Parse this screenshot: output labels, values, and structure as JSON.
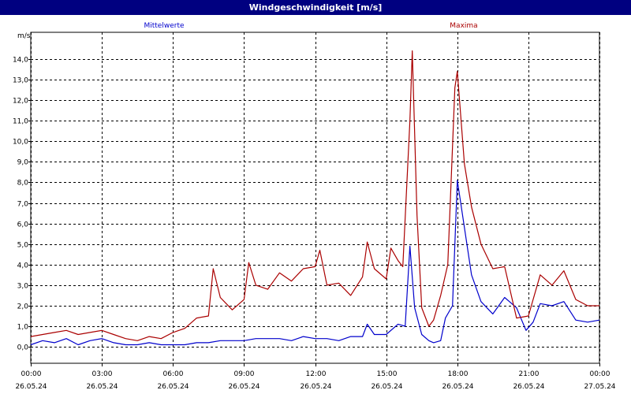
{
  "window": {
    "title": "Windgeschwindigkeit [m/s]"
  },
  "chart_data": {
    "type": "line",
    "title": "Windgeschwindigkeit [m/s]",
    "ylabel": "m/s",
    "ylim": [
      -0.8,
      15.3
    ],
    "yticks": [
      0,
      1,
      2,
      3,
      4,
      5,
      6,
      7,
      8,
      9,
      10,
      11,
      12,
      13,
      14
    ],
    "ytick_labels": [
      "0,0",
      "1,0",
      "2,0",
      "3,0",
      "4,0",
      "5,0",
      "6,0",
      "7,0",
      "8,0",
      "9,0",
      "10,0",
      "11,0",
      "12,0",
      "13,0",
      "14,0"
    ],
    "xlim": [
      0,
      24
    ],
    "xticks": [
      0,
      3,
      6,
      9,
      12,
      15,
      18,
      21,
      24
    ],
    "xtick_labels": [
      [
        "00:00",
        "26.05.24"
      ],
      [
        "03:00",
        "26.05.24"
      ],
      [
        "06:00",
        "26.05.24"
      ],
      [
        "09:00",
        "26.05.24"
      ],
      [
        "12:00",
        "26.05.24"
      ],
      [
        "15:00",
        "26.05.24"
      ],
      [
        "18:00",
        "26.05.24"
      ],
      [
        "21:00",
        "26.05.24"
      ],
      [
        "00:00",
        "27.05.24"
      ]
    ],
    "grid": true,
    "legend_position": "top",
    "series": [
      {
        "name": "Mittelwerte",
        "color": "#0000cc",
        "points": [
          [
            0,
            0.1
          ],
          [
            0.5,
            0.3
          ],
          [
            1,
            0.2
          ],
          [
            1.5,
            0.4
          ],
          [
            2,
            0.1
          ],
          [
            2.5,
            0.3
          ],
          [
            3,
            0.4
          ],
          [
            3.5,
            0.2
          ],
          [
            4,
            0.1
          ],
          [
            4.5,
            0.1
          ],
          [
            5,
            0.2
          ],
          [
            5.5,
            0.1
          ],
          [
            6,
            0.1
          ],
          [
            6.5,
            0.1
          ],
          [
            7,
            0.2
          ],
          [
            7.5,
            0.2
          ],
          [
            8,
            0.3
          ],
          [
            8.5,
            0.3
          ],
          [
            9,
            0.3
          ],
          [
            9.5,
            0.4
          ],
          [
            10,
            0.4
          ],
          [
            10.5,
            0.4
          ],
          [
            11,
            0.3
          ],
          [
            11.5,
            0.5
          ],
          [
            12,
            0.4
          ],
          [
            12.5,
            0.4
          ],
          [
            13,
            0.3
          ],
          [
            13.5,
            0.5
          ],
          [
            14,
            0.5
          ],
          [
            14.2,
            1.1
          ],
          [
            14.5,
            0.6
          ],
          [
            15,
            0.6
          ],
          [
            15.5,
            1.1
          ],
          [
            15.8,
            1.0
          ],
          [
            16,
            4.9
          ],
          [
            16.2,
            1.9
          ],
          [
            16.5,
            0.6
          ],
          [
            16.8,
            0.3
          ],
          [
            17,
            0.2
          ],
          [
            17.3,
            0.3
          ],
          [
            17.5,
            1.4
          ],
          [
            17.8,
            2.0
          ],
          [
            18,
            8.1
          ],
          [
            18.3,
            5.8
          ],
          [
            18.6,
            3.5
          ],
          [
            19,
            2.2
          ],
          [
            19.5,
            1.6
          ],
          [
            20,
            2.4
          ],
          [
            20.5,
            1.9
          ],
          [
            20.9,
            0.8
          ],
          [
            21.2,
            1.2
          ],
          [
            21.5,
            2.1
          ],
          [
            22,
            2.0
          ],
          [
            22.5,
            2.2
          ],
          [
            23,
            1.3
          ],
          [
            23.5,
            1.2
          ],
          [
            24,
            1.3
          ]
        ]
      },
      {
        "name": "Maxima",
        "color": "#aa0000",
        "points": [
          [
            0,
            0.5
          ],
          [
            0.5,
            0.6
          ],
          [
            1,
            0.7
          ],
          [
            1.5,
            0.8
          ],
          [
            2,
            0.6
          ],
          [
            2.5,
            0.7
          ],
          [
            3,
            0.8
          ],
          [
            3.5,
            0.6
          ],
          [
            4,
            0.4
          ],
          [
            4.5,
            0.3
          ],
          [
            5,
            0.5
          ],
          [
            5.5,
            0.4
          ],
          [
            6,
            0.7
          ],
          [
            6.5,
            0.9
          ],
          [
            7,
            1.4
          ],
          [
            7.5,
            1.5
          ],
          [
            7.7,
            3.8
          ],
          [
            8,
            2.4
          ],
          [
            8.5,
            1.8
          ],
          [
            9,
            2.3
          ],
          [
            9.2,
            4.1
          ],
          [
            9.5,
            3.0
          ],
          [
            10,
            2.8
          ],
          [
            10.5,
            3.6
          ],
          [
            11,
            3.2
          ],
          [
            11.5,
            3.8
          ],
          [
            12,
            3.9
          ],
          [
            12.2,
            4.7
          ],
          [
            12.5,
            3.0
          ],
          [
            13,
            3.1
          ],
          [
            13.5,
            2.5
          ],
          [
            14,
            3.4
          ],
          [
            14.2,
            5.1
          ],
          [
            14.5,
            3.8
          ],
          [
            15,
            3.3
          ],
          [
            15.2,
            4.8
          ],
          [
            15.5,
            4.2
          ],
          [
            15.7,
            3.9
          ],
          [
            16,
            11.0
          ],
          [
            16.1,
            14.4
          ],
          [
            16.3,
            6.4
          ],
          [
            16.5,
            1.9
          ],
          [
            16.8,
            1.0
          ],
          [
            17,
            1.3
          ],
          [
            17.3,
            2.5
          ],
          [
            17.6,
            4.0
          ],
          [
            17.9,
            12.6
          ],
          [
            18,
            13.4
          ],
          [
            18.3,
            8.9
          ],
          [
            18.6,
            6.8
          ],
          [
            19,
            5.0
          ],
          [
            19.5,
            3.8
          ],
          [
            20,
            3.9
          ],
          [
            20.5,
            1.4
          ],
          [
            21,
            1.5
          ],
          [
            21.5,
            3.5
          ],
          [
            22,
            3.0
          ],
          [
            22.5,
            3.7
          ],
          [
            23,
            2.3
          ],
          [
            23.5,
            2.0
          ],
          [
            24,
            2.0
          ]
        ]
      }
    ]
  }
}
